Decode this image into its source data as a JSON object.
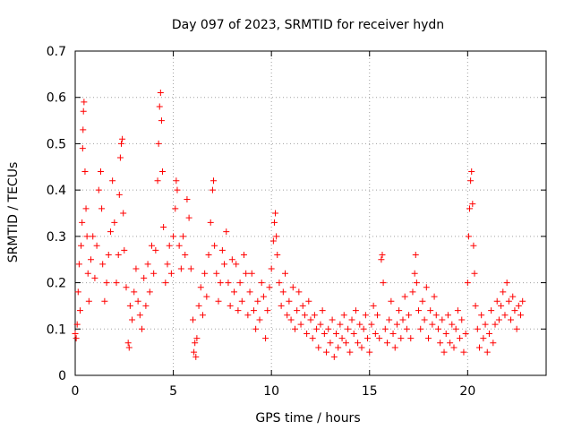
{
  "chart_data": {
    "type": "scatter",
    "title": "Day 097 of 2023, SRMTID for receiver hydn",
    "xlabel": "GPS time / hours",
    "ylabel": "SRMTID / TECUs",
    "xlim": [
      0,
      24
    ],
    "ylim": [
      0,
      0.7
    ],
    "xticks": [
      0,
      5,
      10,
      15,
      20
    ],
    "xtick_labels": [
      "0",
      "5",
      "10",
      "15",
      "20"
    ],
    "yticks": [
      0,
      0.1,
      0.2,
      0.3,
      0.4,
      0.5,
      0.6,
      0.7
    ],
    "ytick_labels": [
      "0",
      "0.1",
      "0.2",
      "0.3",
      "0.4",
      "0.5",
      "0.6",
      "0.7"
    ],
    "grid": true,
    "marker": "+",
    "color": "#ff0000",
    "series": [
      {
        "name": "SRMTID",
        "points": [
          [
            0.0,
            0.09
          ],
          [
            0.05,
            0.08
          ],
          [
            0.1,
            0.11
          ],
          [
            0.15,
            0.18
          ],
          [
            0.2,
            0.24
          ],
          [
            0.25,
            0.14
          ],
          [
            0.3,
            0.28
          ],
          [
            0.35,
            0.33
          ],
          [
            0.38,
            0.49
          ],
          [
            0.4,
            0.53
          ],
          [
            0.42,
            0.57
          ],
          [
            0.45,
            0.59
          ],
          [
            0.5,
            0.44
          ],
          [
            0.55,
            0.36
          ],
          [
            0.6,
            0.3
          ],
          [
            0.65,
            0.22
          ],
          [
            0.7,
            0.16
          ],
          [
            0.8,
            0.25
          ],
          [
            0.9,
            0.3
          ],
          [
            1.0,
            0.21
          ],
          [
            1.1,
            0.28
          ],
          [
            1.2,
            0.4
          ],
          [
            1.3,
            0.44
          ],
          [
            1.35,
            0.36
          ],
          [
            1.4,
            0.24
          ],
          [
            1.5,
            0.16
          ],
          [
            1.6,
            0.2
          ],
          [
            1.7,
            0.26
          ],
          [
            1.8,
            0.31
          ],
          [
            1.9,
            0.42
          ],
          [
            2.0,
            0.33
          ],
          [
            2.1,
            0.2
          ],
          [
            2.2,
            0.26
          ],
          [
            2.25,
            0.39
          ],
          [
            2.3,
            0.47
          ],
          [
            2.35,
            0.5
          ],
          [
            2.4,
            0.51
          ],
          [
            2.45,
            0.35
          ],
          [
            2.5,
            0.27
          ],
          [
            2.6,
            0.19
          ],
          [
            2.7,
            0.07
          ],
          [
            2.75,
            0.06
          ],
          [
            2.8,
            0.15
          ],
          [
            2.9,
            0.12
          ],
          [
            3.0,
            0.18
          ],
          [
            3.1,
            0.23
          ],
          [
            3.2,
            0.16
          ],
          [
            3.3,
            0.13
          ],
          [
            3.4,
            0.1
          ],
          [
            3.5,
            0.21
          ],
          [
            3.6,
            0.15
          ],
          [
            3.7,
            0.24
          ],
          [
            3.8,
            0.18
          ],
          [
            3.9,
            0.28
          ],
          [
            4.0,
            0.22
          ],
          [
            4.1,
            0.27
          ],
          [
            4.2,
            0.42
          ],
          [
            4.25,
            0.5
          ],
          [
            4.3,
            0.58
          ],
          [
            4.35,
            0.61
          ],
          [
            4.4,
            0.55
          ],
          [
            4.45,
            0.44
          ],
          [
            4.5,
            0.32
          ],
          [
            4.6,
            0.2
          ],
          [
            4.7,
            0.24
          ],
          [
            4.8,
            0.28
          ],
          [
            4.9,
            0.22
          ],
          [
            5.0,
            0.3
          ],
          [
            5.1,
            0.36
          ],
          [
            5.15,
            0.42
          ],
          [
            5.2,
            0.4
          ],
          [
            5.3,
            0.28
          ],
          [
            5.4,
            0.23
          ],
          [
            5.5,
            0.3
          ],
          [
            5.6,
            0.26
          ],
          [
            5.7,
            0.38
          ],
          [
            5.8,
            0.34
          ],
          [
            5.9,
            0.23
          ],
          [
            6.0,
            0.12
          ],
          [
            6.05,
            0.05
          ],
          [
            6.1,
            0.07
          ],
          [
            6.15,
            0.04
          ],
          [
            6.2,
            0.08
          ],
          [
            6.3,
            0.15
          ],
          [
            6.4,
            0.19
          ],
          [
            6.5,
            0.13
          ],
          [
            6.6,
            0.22
          ],
          [
            6.7,
            0.17
          ],
          [
            6.8,
            0.26
          ],
          [
            6.9,
            0.33
          ],
          [
            7.0,
            0.4
          ],
          [
            7.05,
            0.42
          ],
          [
            7.1,
            0.28
          ],
          [
            7.2,
            0.22
          ],
          [
            7.3,
            0.16
          ],
          [
            7.4,
            0.2
          ],
          [
            7.5,
            0.27
          ],
          [
            7.6,
            0.24
          ],
          [
            7.7,
            0.31
          ],
          [
            7.8,
            0.2
          ],
          [
            7.9,
            0.15
          ],
          [
            8.0,
            0.25
          ],
          [
            8.1,
            0.18
          ],
          [
            8.2,
            0.24
          ],
          [
            8.3,
            0.14
          ],
          [
            8.4,
            0.2
          ],
          [
            8.5,
            0.16
          ],
          [
            8.6,
            0.26
          ],
          [
            8.7,
            0.22
          ],
          [
            8.8,
            0.13
          ],
          [
            8.9,
            0.18
          ],
          [
            9.0,
            0.22
          ],
          [
            9.1,
            0.14
          ],
          [
            9.2,
            0.1
          ],
          [
            9.3,
            0.16
          ],
          [
            9.4,
            0.12
          ],
          [
            9.5,
            0.2
          ],
          [
            9.6,
            0.17
          ],
          [
            9.7,
            0.08
          ],
          [
            9.8,
            0.14
          ],
          [
            9.9,
            0.19
          ],
          [
            10.0,
            0.23
          ],
          [
            10.1,
            0.29
          ],
          [
            10.15,
            0.33
          ],
          [
            10.2,
            0.35
          ],
          [
            10.25,
            0.3
          ],
          [
            10.3,
            0.26
          ],
          [
            10.4,
            0.2
          ],
          [
            10.5,
            0.15
          ],
          [
            10.6,
            0.18
          ],
          [
            10.7,
            0.22
          ],
          [
            10.8,
            0.13
          ],
          [
            10.9,
            0.16
          ],
          [
            11.0,
            0.12
          ],
          [
            11.1,
            0.19
          ],
          [
            11.2,
            0.1
          ],
          [
            11.3,
            0.14
          ],
          [
            11.4,
            0.18
          ],
          [
            11.5,
            0.11
          ],
          [
            11.6,
            0.15
          ],
          [
            11.7,
            0.13
          ],
          [
            11.8,
            0.09
          ],
          [
            11.9,
            0.16
          ],
          [
            12.0,
            0.12
          ],
          [
            12.1,
            0.08
          ],
          [
            12.2,
            0.13
          ],
          [
            12.3,
            0.1
          ],
          [
            12.4,
            0.06
          ],
          [
            12.5,
            0.11
          ],
          [
            12.6,
            0.14
          ],
          [
            12.7,
            0.09
          ],
          [
            12.8,
            0.05
          ],
          [
            12.9,
            0.1
          ],
          [
            13.0,
            0.07
          ],
          [
            13.1,
            0.12
          ],
          [
            13.2,
            0.04
          ],
          [
            13.3,
            0.09
          ],
          [
            13.4,
            0.06
          ],
          [
            13.5,
            0.11
          ],
          [
            13.6,
            0.08
          ],
          [
            13.7,
            0.13
          ],
          [
            13.8,
            0.07
          ],
          [
            13.9,
            0.1
          ],
          [
            14.0,
            0.05
          ],
          [
            14.1,
            0.12
          ],
          [
            14.2,
            0.09
          ],
          [
            14.3,
            0.14
          ],
          [
            14.4,
            0.07
          ],
          [
            14.5,
            0.11
          ],
          [
            14.6,
            0.06
          ],
          [
            14.7,
            0.1
          ],
          [
            14.8,
            0.13
          ],
          [
            14.9,
            0.08
          ],
          [
            15.0,
            0.05
          ],
          [
            15.1,
            0.11
          ],
          [
            15.2,
            0.15
          ],
          [
            15.3,
            0.09
          ],
          [
            15.4,
            0.13
          ],
          [
            15.5,
            0.08
          ],
          [
            15.6,
            0.25
          ],
          [
            15.65,
            0.26
          ],
          [
            15.7,
            0.2
          ],
          [
            15.8,
            0.1
          ],
          [
            15.9,
            0.07
          ],
          [
            16.0,
            0.12
          ],
          [
            16.1,
            0.16
          ],
          [
            16.2,
            0.09
          ],
          [
            16.3,
            0.06
          ],
          [
            16.4,
            0.11
          ],
          [
            16.5,
            0.14
          ],
          [
            16.6,
            0.08
          ],
          [
            16.7,
            0.12
          ],
          [
            16.8,
            0.17
          ],
          [
            16.9,
            0.1
          ],
          [
            17.0,
            0.13
          ],
          [
            17.1,
            0.08
          ],
          [
            17.2,
            0.18
          ],
          [
            17.3,
            0.22
          ],
          [
            17.35,
            0.26
          ],
          [
            17.4,
            0.2
          ],
          [
            17.5,
            0.14
          ],
          [
            17.6,
            0.1
          ],
          [
            17.7,
            0.16
          ],
          [
            17.8,
            0.12
          ],
          [
            17.9,
            0.19
          ],
          [
            18.0,
            0.08
          ],
          [
            18.1,
            0.14
          ],
          [
            18.2,
            0.11
          ],
          [
            18.3,
            0.17
          ],
          [
            18.4,
            0.13
          ],
          [
            18.5,
            0.1
          ],
          [
            18.6,
            0.07
          ],
          [
            18.7,
            0.12
          ],
          [
            18.8,
            0.05
          ],
          [
            18.9,
            0.09
          ],
          [
            19.0,
            0.13
          ],
          [
            19.1,
            0.07
          ],
          [
            19.2,
            0.11
          ],
          [
            19.3,
            0.06
          ],
          [
            19.4,
            0.1
          ],
          [
            19.5,
            0.14
          ],
          [
            19.6,
            0.08
          ],
          [
            19.7,
            0.12
          ],
          [
            19.8,
            0.05
          ],
          [
            19.9,
            0.09
          ],
          [
            20.0,
            0.2
          ],
          [
            20.05,
            0.3
          ],
          [
            20.1,
            0.36
          ],
          [
            20.15,
            0.42
          ],
          [
            20.2,
            0.44
          ],
          [
            20.25,
            0.37
          ],
          [
            20.3,
            0.28
          ],
          [
            20.35,
            0.22
          ],
          [
            20.4,
            0.15
          ],
          [
            20.5,
            0.1
          ],
          [
            20.6,
            0.06
          ],
          [
            20.7,
            0.13
          ],
          [
            20.8,
            0.08
          ],
          [
            20.9,
            0.11
          ],
          [
            21.0,
            0.05
          ],
          [
            21.1,
            0.09
          ],
          [
            21.2,
            0.14
          ],
          [
            21.3,
            0.07
          ],
          [
            21.4,
            0.11
          ],
          [
            21.5,
            0.16
          ],
          [
            21.6,
            0.12
          ],
          [
            21.7,
            0.15
          ],
          [
            21.8,
            0.18
          ],
          [
            21.9,
            0.13
          ],
          [
            22.0,
            0.2
          ],
          [
            22.1,
            0.16
          ],
          [
            22.2,
            0.12
          ],
          [
            22.3,
            0.17
          ],
          [
            22.4,
            0.14
          ],
          [
            22.5,
            0.1
          ],
          [
            22.6,
            0.15
          ],
          [
            22.7,
            0.13
          ],
          [
            22.8,
            0.16
          ]
        ]
      }
    ]
  }
}
